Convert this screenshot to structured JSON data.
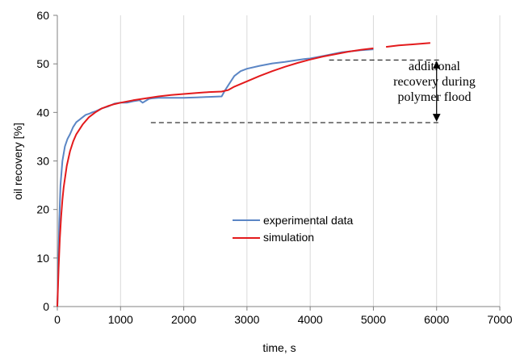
{
  "chart_data": {
    "type": "line",
    "xlabel": "time, s",
    "ylabel": "oil recovery [%]",
    "xlim": [
      0,
      7000
    ],
    "ylim": [
      0,
      60
    ],
    "xticks": [
      "0",
      "1000",
      "2000",
      "3000",
      "4000",
      "5000",
      "6000",
      "7000"
    ],
    "yticks": [
      "0",
      "10",
      "20",
      "30",
      "40",
      "50",
      "60"
    ],
    "grid": "vertical",
    "legend_position": "center",
    "series": [
      {
        "name": "experimental data",
        "color": "#5b86c5",
        "points": [
          [
            0,
            0
          ],
          [
            15,
            8
          ],
          [
            30,
            17
          ],
          [
            50,
            25
          ],
          [
            80,
            30
          ],
          [
            120,
            33
          ],
          [
            160,
            34.5
          ],
          [
            200,
            35.5
          ],
          [
            250,
            37
          ],
          [
            300,
            38
          ],
          [
            350,
            38.5
          ],
          [
            400,
            39
          ],
          [
            450,
            39.5
          ],
          [
            500,
            39.7
          ],
          [
            550,
            40
          ],
          [
            600,
            40.2
          ],
          [
            700,
            40.8
          ],
          [
            800,
            41.2
          ],
          [
            900,
            41.8
          ],
          [
            1000,
            42
          ],
          [
            1100,
            42
          ],
          [
            1200,
            42.3
          ],
          [
            1300,
            42.5
          ],
          [
            1350,
            42
          ],
          [
            1400,
            42.4
          ],
          [
            1450,
            42.8
          ],
          [
            1500,
            42.9
          ],
          [
            1600,
            43
          ],
          [
            1800,
            43
          ],
          [
            2000,
            43
          ],
          [
            2200,
            43.1
          ],
          [
            2400,
            43.2
          ],
          [
            2600,
            43.3
          ],
          [
            2650,
            44.5
          ],
          [
            2700,
            45.5
          ],
          [
            2750,
            46.5
          ],
          [
            2800,
            47.5
          ],
          [
            2850,
            48
          ],
          [
            2900,
            48.5
          ],
          [
            3000,
            49
          ],
          [
            3200,
            49.6
          ],
          [
            3400,
            50.1
          ],
          [
            3600,
            50.4
          ],
          [
            3800,
            50.8
          ],
          [
            3900,
            51
          ],
          [
            4000,
            51.1
          ],
          [
            4200,
            51.6
          ],
          [
            4500,
            52.4
          ],
          [
            4800,
            52.8
          ],
          [
            5000,
            53
          ]
        ]
      },
      {
        "name": "simulation",
        "color": "#e31a1c",
        "points": [
          [
            0,
            0
          ],
          [
            20,
            8
          ],
          [
            40,
            14
          ],
          [
            60,
            18.5
          ],
          [
            80,
            22
          ],
          [
            100,
            24.5
          ],
          [
            150,
            29
          ],
          [
            200,
            32
          ],
          [
            250,
            34
          ],
          [
            300,
            35.5
          ],
          [
            400,
            37.5
          ],
          [
            500,
            39
          ],
          [
            600,
            40
          ],
          [
            700,
            40.8
          ],
          [
            800,
            41.3
          ],
          [
            900,
            41.7
          ],
          [
            1000,
            42
          ],
          [
            1200,
            42.5
          ],
          [
            1400,
            42.9
          ],
          [
            1600,
            43.3
          ],
          [
            1800,
            43.6
          ],
          [
            2000,
            43.8
          ],
          [
            2200,
            44
          ],
          [
            2400,
            44.2
          ],
          [
            2600,
            44.3
          ],
          [
            2700,
            44.6
          ],
          [
            2800,
            45.3
          ],
          [
            3000,
            46.4
          ],
          [
            3200,
            47.5
          ],
          [
            3400,
            48.5
          ],
          [
            3600,
            49.4
          ],
          [
            3800,
            50.2
          ],
          [
            4000,
            50.9
          ],
          [
            4200,
            51.5
          ],
          [
            4400,
            52
          ],
          [
            4600,
            52.5
          ],
          [
            4800,
            52.9
          ],
          [
            5000,
            53.2
          ]
        ],
        "extension": [
          [
            5200,
            53.5
          ],
          [
            5400,
            53.8
          ],
          [
            5600,
            54
          ],
          [
            5800,
            54.2
          ],
          [
            5900,
            54.3
          ]
        ]
      }
    ],
    "reference_lines": {
      "upper": {
        "y": 50.8,
        "x_from": 4300,
        "x_to": 6050
      },
      "lower": {
        "y": 37.9,
        "x_from": 1480,
        "x_to": 6050
      },
      "arrow_x": 6000
    },
    "annotation": {
      "lines": [
        "additional",
        "recovery during",
        "polymer flood"
      ]
    }
  }
}
